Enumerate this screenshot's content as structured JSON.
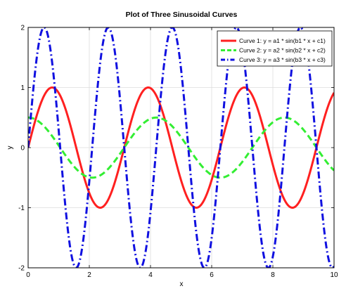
{
  "chart_data": {
    "type": "line",
    "title": "Plot of Three Sinusoidal Curves",
    "xlabel": "x",
    "ylabel": "y",
    "xlim": [
      0,
      10
    ],
    "ylim": [
      -2,
      2
    ],
    "xticks": [
      0,
      2,
      4,
      6,
      8,
      10
    ],
    "yticks": [
      -2,
      -1,
      0,
      1,
      2
    ],
    "grid": true,
    "legend_position": "top-right",
    "series": [
      {
        "name": "Curve 1: y = a1 * sin(b1 * x + c1)",
        "function": "1 * sin(2 * x + 0)",
        "amplitude": 1,
        "frequency": 2,
        "phase": 0,
        "color": "#ff2020",
        "dash": "solid"
      },
      {
        "name": "Curve 2: y = a2 * sin(b2 * x + c2)",
        "function": "0.5 * sin(1.5 * x + 1.5708)",
        "amplitude": 0.5,
        "frequency": 1.5,
        "phase": 1.5708,
        "color": "#33ee33",
        "dash": "dashed"
      },
      {
        "name": "Curve 3: y = a3 * sin(b3 * x + c3)",
        "function": "2 * sin(3 * x + 0)",
        "amplitude": 2,
        "frequency": 3,
        "phase": 0,
        "color": "#1010e0",
        "dash": "dashdot"
      }
    ]
  }
}
